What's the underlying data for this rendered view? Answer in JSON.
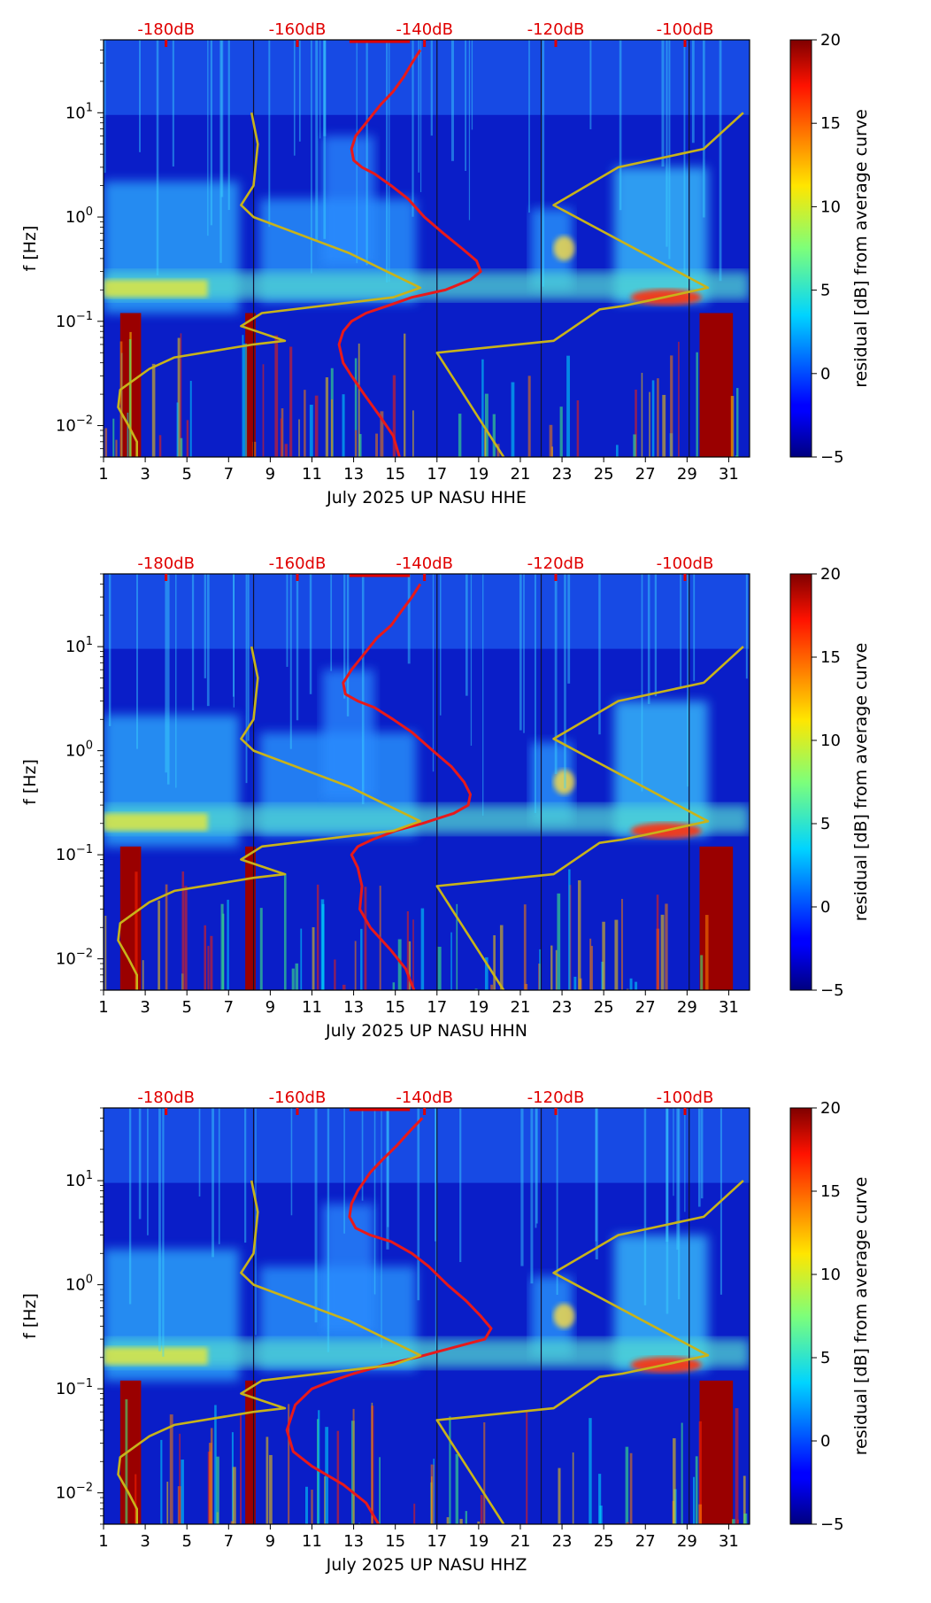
{
  "chart_data": [
    {
      "type": "heatmap",
      "xlabel": "July 2025 UP NASU  HHE",
      "ylabel": "f [Hz]",
      "yscale": "log",
      "xlim": [
        1,
        32
      ],
      "ylim": [
        0.005,
        50
      ],
      "x_ticks": [
        "1",
        "3",
        "5",
        "7",
        "9",
        "11",
        "13",
        "15",
        "17",
        "19",
        "21",
        "23",
        "25",
        "27",
        "29",
        "31"
      ],
      "y_ticks": [
        {
          "value": 0.01,
          "base": "10",
          "exp": "−2"
        },
        {
          "value": 0.1,
          "base": "10",
          "exp": "−1"
        },
        {
          "value": 1,
          "base": "10",
          "exp": "0"
        },
        {
          "value": 10,
          "base": "10",
          "exp": "1"
        }
      ],
      "db_labels": [
        "-180dB",
        "-160dB",
        "-140dB",
        "-120dB",
        "-100dB"
      ],
      "colorbar": {
        "label": "residual [dB] from average curve",
        "ticks": [
          "20",
          "15",
          "10",
          "5",
          "0",
          "−5"
        ],
        "range": [
          -5,
          20
        ],
        "colormap": "jet"
      },
      "series": [
        {
          "color": "#e8191a",
          "x": [
            16.2,
            15.8,
            15.4,
            14.9,
            14.3,
            13.6,
            13.1,
            12.9,
            13.0,
            13.4,
            14.0,
            14.8,
            15.6,
            16.4,
            17.3,
            18.2,
            18.9,
            19.1,
            18.6,
            17.4,
            15.8,
            14.6,
            13.6,
            12.9,
            12.5,
            12.3,
            12.5,
            12.9,
            13.5,
            14.3,
            14.9,
            15.2
          ],
          "y": [
            40,
            30,
            22,
            16,
            12,
            8,
            6,
            4.5,
            3.5,
            3,
            2.6,
            2.0,
            1.5,
            1.0,
            0.7,
            0.5,
            0.38,
            0.3,
            0.25,
            0.2,
            0.17,
            0.14,
            0.12,
            0.1,
            0.08,
            0.06,
            0.04,
            0.03,
            0.02,
            0.012,
            0.008,
            0.005
          ]
        },
        {
          "color": "#c8b31a",
          "x": [
            8.1,
            8.4,
            8.2,
            7.6,
            8.2,
            12.8,
            16.2,
            14.9,
            8.6,
            7.6,
            9.7,
            8.2,
            4.4,
            3.2,
            1.8,
            1.7,
            2.2,
            2.6,
            2.6
          ],
          "y": [
            10,
            5,
            2,
            1.3,
            1,
            0.45,
            0.21,
            0.17,
            0.12,
            0.09,
            0.065,
            0.06,
            0.045,
            0.035,
            0.022,
            0.015,
            0.01,
            0.007,
            0.005
          ]
        },
        {
          "color": "#c8b31a",
          "x": [
            20.2,
            17.0,
            22.6,
            24.8,
            25.9,
            27.9,
            30.0,
            22.6,
            25.7,
            29.8,
            31.7
          ],
          "y": [
            0.005,
            0.05,
            0.065,
            0.13,
            0.14,
            0.17,
            0.21,
            1.3,
            3.0,
            4.5,
            10
          ]
        }
      ]
    },
    {
      "type": "heatmap",
      "xlabel": "July 2025 UP NASU  HHN",
      "ylabel": "f [Hz]",
      "yscale": "log",
      "xlim": [
        1,
        32
      ],
      "ylim": [
        0.005,
        50
      ],
      "x_ticks": [
        "1",
        "3",
        "5",
        "7",
        "9",
        "11",
        "13",
        "15",
        "17",
        "19",
        "21",
        "23",
        "25",
        "27",
        "29",
        "31"
      ],
      "y_ticks": [
        {
          "value": 0.01,
          "base": "10",
          "exp": "−2"
        },
        {
          "value": 0.1,
          "base": "10",
          "exp": "−1"
        },
        {
          "value": 1,
          "base": "10",
          "exp": "0"
        },
        {
          "value": 10,
          "base": "10",
          "exp": "1"
        }
      ],
      "db_labels": [
        "-180dB",
        "-160dB",
        "-140dB",
        "-120dB",
        "-100dB"
      ],
      "colorbar": {
        "label": "residual [dB] from average curve",
        "ticks": [
          "20",
          "15",
          "10",
          "5",
          "0",
          "−5"
        ],
        "range": [
          -5,
          20
        ],
        "colormap": "jet"
      },
      "series": [
        {
          "color": "#e8191a",
          "x": [
            16.2,
            15.8,
            15.3,
            14.8,
            14.1,
            13.4,
            12.9,
            12.5,
            12.6,
            13.2,
            14.0,
            14.9,
            15.8,
            16.8,
            17.7,
            18.3,
            18.6,
            18.5,
            17.8,
            16.3,
            15.0,
            13.9,
            13.2,
            12.9,
            13.2,
            13.4,
            13.3,
            13.8,
            14.8,
            15.5,
            15.9
          ],
          "y": [
            40,
            30,
            22,
            16,
            12,
            8,
            6,
            4.5,
            3.5,
            3,
            2.6,
            2.0,
            1.5,
            1.0,
            0.7,
            0.5,
            0.38,
            0.3,
            0.25,
            0.2,
            0.17,
            0.14,
            0.12,
            0.1,
            0.075,
            0.05,
            0.03,
            0.02,
            0.012,
            0.008,
            0.005
          ]
        },
        {
          "color": "#c8b31a",
          "x": [
            8.1,
            8.4,
            8.2,
            7.6,
            8.2,
            12.8,
            16.2,
            14.9,
            8.6,
            7.6,
            9.7,
            8.2,
            4.4,
            3.2,
            1.8,
            1.7,
            2.2,
            2.6,
            2.6
          ],
          "y": [
            10,
            5,
            2,
            1.3,
            1,
            0.45,
            0.21,
            0.17,
            0.12,
            0.09,
            0.065,
            0.06,
            0.045,
            0.035,
            0.022,
            0.015,
            0.01,
            0.007,
            0.005
          ]
        },
        {
          "color": "#c8b31a",
          "x": [
            20.2,
            17.0,
            22.6,
            24.8,
            25.9,
            27.9,
            30.0,
            22.6,
            25.7,
            29.8,
            31.7
          ],
          "y": [
            0.005,
            0.05,
            0.065,
            0.13,
            0.14,
            0.17,
            0.21,
            1.3,
            3.0,
            4.5,
            10
          ]
        }
      ]
    },
    {
      "type": "heatmap",
      "xlabel": "July 2025 UP NASU  HHZ",
      "ylabel": "f [Hz]",
      "yscale": "log",
      "xlim": [
        1,
        32
      ],
      "ylim": [
        0.005,
        50
      ],
      "x_ticks": [
        "1",
        "3",
        "5",
        "7",
        "9",
        "11",
        "13",
        "15",
        "17",
        "19",
        "21",
        "23",
        "25",
        "27",
        "29",
        "31"
      ],
      "y_ticks": [
        {
          "value": 0.01,
          "base": "10",
          "exp": "−2"
        },
        {
          "value": 0.1,
          "base": "10",
          "exp": "−1"
        },
        {
          "value": 1,
          "base": "10",
          "exp": "0"
        },
        {
          "value": 10,
          "base": "10",
          "exp": "1"
        }
      ],
      "db_labels": [
        "-180dB",
        "-160dB",
        "-140dB",
        "-120dB",
        "-100dB"
      ],
      "colorbar": {
        "label": "residual [dB] from average curve",
        "ticks": [
          "20",
          "15",
          "10",
          "5",
          "0",
          "−5"
        ],
        "range": [
          -5,
          20
        ],
        "colormap": "jet"
      },
      "series": [
        {
          "color": "#e8191a",
          "x": [
            16.3,
            15.7,
            15.1,
            14.4,
            13.8,
            13.2,
            12.9,
            12.8,
            13.1,
            13.8,
            14.8,
            15.8,
            16.6,
            17.5,
            18.4,
            19.1,
            19.6,
            19.3,
            17.8,
            16.0,
            14.5,
            13.0,
            12.0,
            11.0,
            10.2,
            9.8,
            10.1,
            11.0,
            12.5,
            13.6,
            14.2
          ],
          "y": [
            40,
            30,
            22,
            16,
            12,
            8,
            6,
            4.5,
            3.5,
            3,
            2.6,
            2.0,
            1.5,
            1.0,
            0.7,
            0.5,
            0.38,
            0.3,
            0.25,
            0.2,
            0.17,
            0.14,
            0.12,
            0.1,
            0.07,
            0.04,
            0.025,
            0.018,
            0.012,
            0.008,
            0.005
          ]
        },
        {
          "color": "#c8b31a",
          "x": [
            8.1,
            8.4,
            8.2,
            7.6,
            8.2,
            12.8,
            16.2,
            14.9,
            8.6,
            7.6,
            9.7,
            8.2,
            4.4,
            3.2,
            1.8,
            1.7,
            2.2,
            2.6,
            2.6
          ],
          "y": [
            10,
            5,
            2,
            1.3,
            1,
            0.45,
            0.21,
            0.17,
            0.12,
            0.09,
            0.065,
            0.06,
            0.045,
            0.035,
            0.022,
            0.015,
            0.01,
            0.007,
            0.005
          ]
        },
        {
          "color": "#c8b31a",
          "x": [
            20.2,
            17.0,
            22.6,
            24.8,
            25.9,
            27.9,
            30.0,
            22.6,
            25.7,
            29.8,
            31.7
          ],
          "y": [
            0.005,
            0.05,
            0.065,
            0.13,
            0.14,
            0.17,
            0.21,
            1.3,
            3.0,
            4.5,
            10
          ]
        }
      ]
    }
  ]
}
